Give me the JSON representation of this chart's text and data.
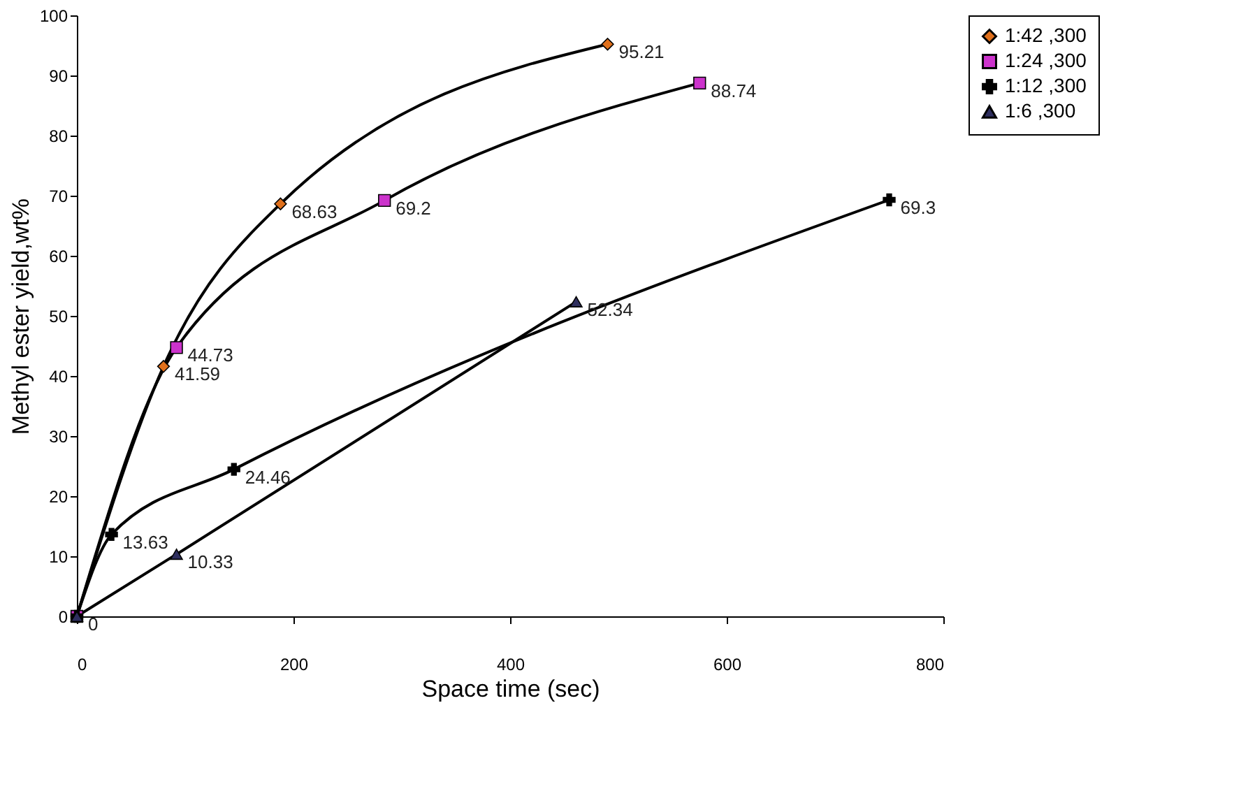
{
  "chart_data": {
    "type": "line",
    "xlabel": "Space time (sec)",
    "ylabel": "Methyl ester yield,wt%",
    "xlim": [
      0,
      800
    ],
    "xticks": [
      0,
      200,
      400,
      600,
      800
    ],
    "ylim": [
      0,
      100
    ],
    "yticks": [
      0,
      10,
      20,
      30,
      40,
      50,
      60,
      70,
      80,
      90,
      100
    ],
    "grid": false,
    "legend": "right",
    "line_style": "solid",
    "series": [
      {
        "name": "1:42 ,300",
        "color": "#e0701c",
        "marker": "diamond",
        "x": [
          0,
          80,
          188,
          490
        ],
        "values": [
          0,
          41.59,
          68.63,
          95.21
        ],
        "value_labels": [
          "0",
          "41.59",
          "68.63",
          "95.21"
        ]
      },
      {
        "name": "1:24 ,300",
        "color": "#cc33cc",
        "marker": "square",
        "x": [
          0,
          92,
          284,
          575
        ],
        "values": [
          0,
          44.73,
          69.2,
          88.74
        ],
        "value_labels": [
          null,
          "44.73",
          "69.2",
          "88.74"
        ]
      },
      {
        "name": "1:12 ,300",
        "color": "#000000",
        "marker": "cross",
        "x": [
          0,
          32,
          145,
          750
        ],
        "values": [
          0,
          13.63,
          24.46,
          69.3
        ],
        "value_labels": [
          null,
          "13.63",
          "24.46",
          "69.3"
        ]
      },
      {
        "name": "1:6 ,300",
        "color": "#2e2e5e",
        "marker": "triangle",
        "x": [
          0,
          92,
          461
        ],
        "values": [
          0,
          10.33,
          52.34
        ],
        "value_labels": [
          null,
          "10.33",
          "52.34"
        ]
      }
    ]
  }
}
